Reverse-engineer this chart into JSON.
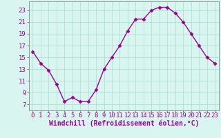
{
  "x": [
    0,
    1,
    2,
    3,
    4,
    5,
    6,
    7,
    8,
    9,
    10,
    11,
    12,
    13,
    14,
    15,
    16,
    17,
    18,
    19,
    20,
    21,
    22,
    23
  ],
  "y": [
    16.0,
    14.0,
    12.8,
    10.5,
    7.5,
    8.2,
    7.5,
    7.5,
    9.5,
    13.0,
    15.0,
    17.0,
    19.5,
    21.5,
    21.5,
    23.0,
    23.5,
    23.5,
    22.5,
    21.0,
    19.0,
    17.0,
    15.0,
    14.0
  ],
  "line_color": "#990099",
  "marker": "D",
  "markersize": 2.5,
  "linewidth": 1.0,
  "bg_color": "#d8f5f0",
  "grid_color": "#aaddcc",
  "xlabel": "Windchill (Refroidissement éolien,°C)",
  "xlabel_fontsize": 7,
  "xtick_labels": [
    "0",
    "1",
    "2",
    "3",
    "4",
    "5",
    "6",
    "7",
    "8",
    "9",
    "10",
    "11",
    "12",
    "13",
    "14",
    "15",
    "16",
    "17",
    "18",
    "19",
    "20",
    "21",
    "22",
    "23"
  ],
  "ytick_values": [
    7,
    9,
    11,
    13,
    15,
    17,
    19,
    21,
    23
  ],
  "ylim": [
    6.0,
    24.5
  ],
  "xlim": [
    -0.5,
    23.5
  ],
  "tick_fontsize": 6.5
}
